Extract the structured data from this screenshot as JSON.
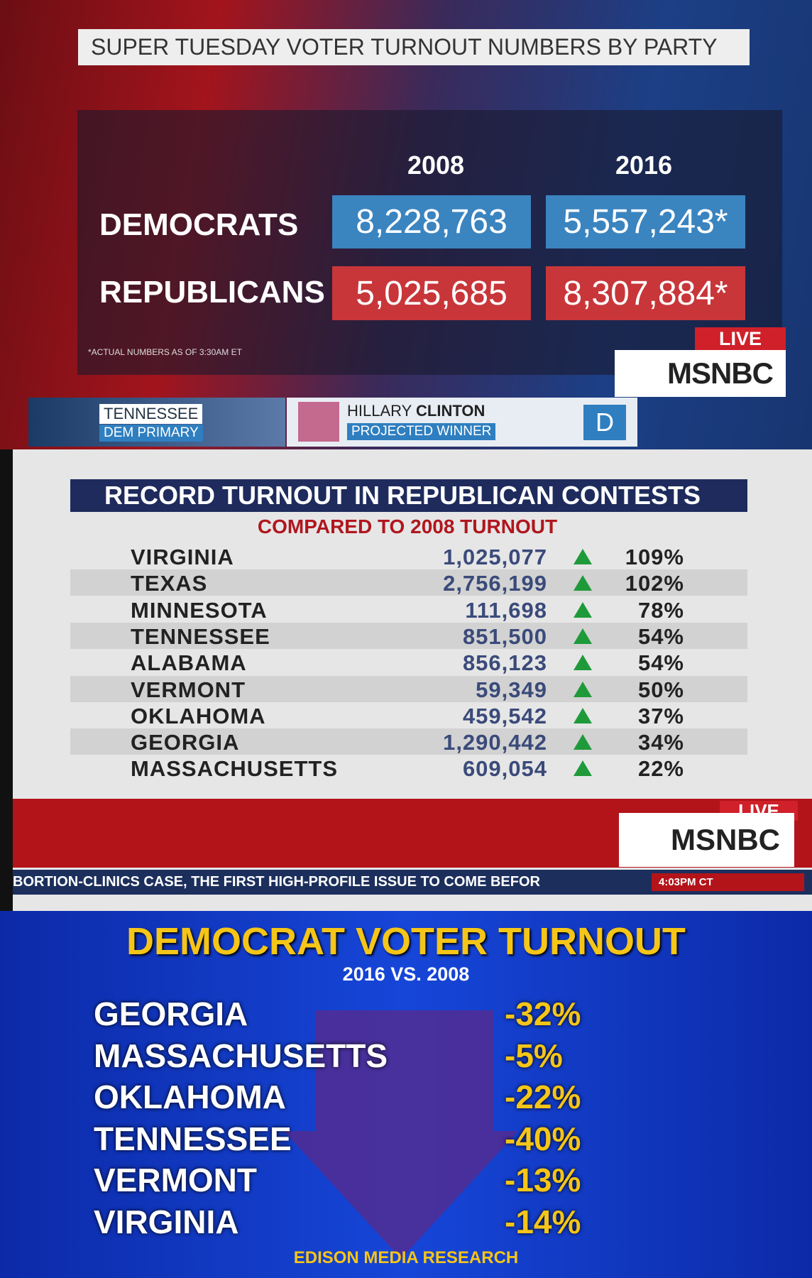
{
  "panel1": {
    "title": "SUPER TUESDAY VOTER TURNOUT NUMBERS BY PARTY",
    "columns": [
      "2008",
      "2016"
    ],
    "rows": [
      {
        "label": "DEMOCRATS",
        "values": [
          "8,228,763",
          "5,557,243*"
        ]
      },
      {
        "label": "REPUBLICANS",
        "values": [
          "5,025,685",
          "8,307,884*"
        ]
      }
    ],
    "footnote": "*ACTUAL NUMBERS AS OF 3:30AM ET",
    "live": "LIVE",
    "network": "MSNBC",
    "lower_third": {
      "state": "TENNESSEE",
      "race": "DEM PRIMARY",
      "candidate_first": "HILLARY",
      "candidate_last": "CLINTON",
      "status": "PROJECTED WINNER",
      "party": "D"
    }
  },
  "panel2": {
    "title": "RECORD TURNOUT IN REPUBLICAN CONTESTS",
    "subtitle": "COMPARED TO 2008 TURNOUT",
    "rows": [
      [
        "VIRGINIA",
        "1,025,077",
        "109%"
      ],
      [
        "TEXAS",
        "2,756,199",
        "102%"
      ],
      [
        "MINNESOTA",
        "111,698",
        "78%"
      ],
      [
        "TENNESSEE",
        "851,500",
        "54%"
      ],
      [
        "ALABAMA",
        "856,123",
        "54%"
      ],
      [
        "VERMONT",
        "59,349",
        "50%"
      ],
      [
        "OKLAHOMA",
        "459,542",
        "37%"
      ],
      [
        "GEORGIA",
        "1,290,442",
        "34%"
      ],
      [
        "MASSACHUSETTS",
        "609,054",
        "22%"
      ]
    ],
    "live": "LIVE",
    "network": "MSNBC",
    "ticker": "BORTION-CLINICS CASE, THE FIRST HIGH-PROFILE ISSUE TO COME BEFOR",
    "time": "4:03PM CT"
  },
  "panel3": {
    "title": "DEMOCRAT VOTER TURNOUT",
    "subtitle": "2016 VS. 2008",
    "rows": [
      [
        "GEORGIA",
        "-32%"
      ],
      [
        "MASSACHUSETTS",
        "-5%"
      ],
      [
        "OKLAHOMA",
        "-22%"
      ],
      [
        "TENNESSEE",
        "-40%"
      ],
      [
        "VERMONT",
        "-13%"
      ],
      [
        "VIRGINIA",
        "-14%"
      ]
    ],
    "source": "EDISON MEDIA RESEARCH"
  }
}
